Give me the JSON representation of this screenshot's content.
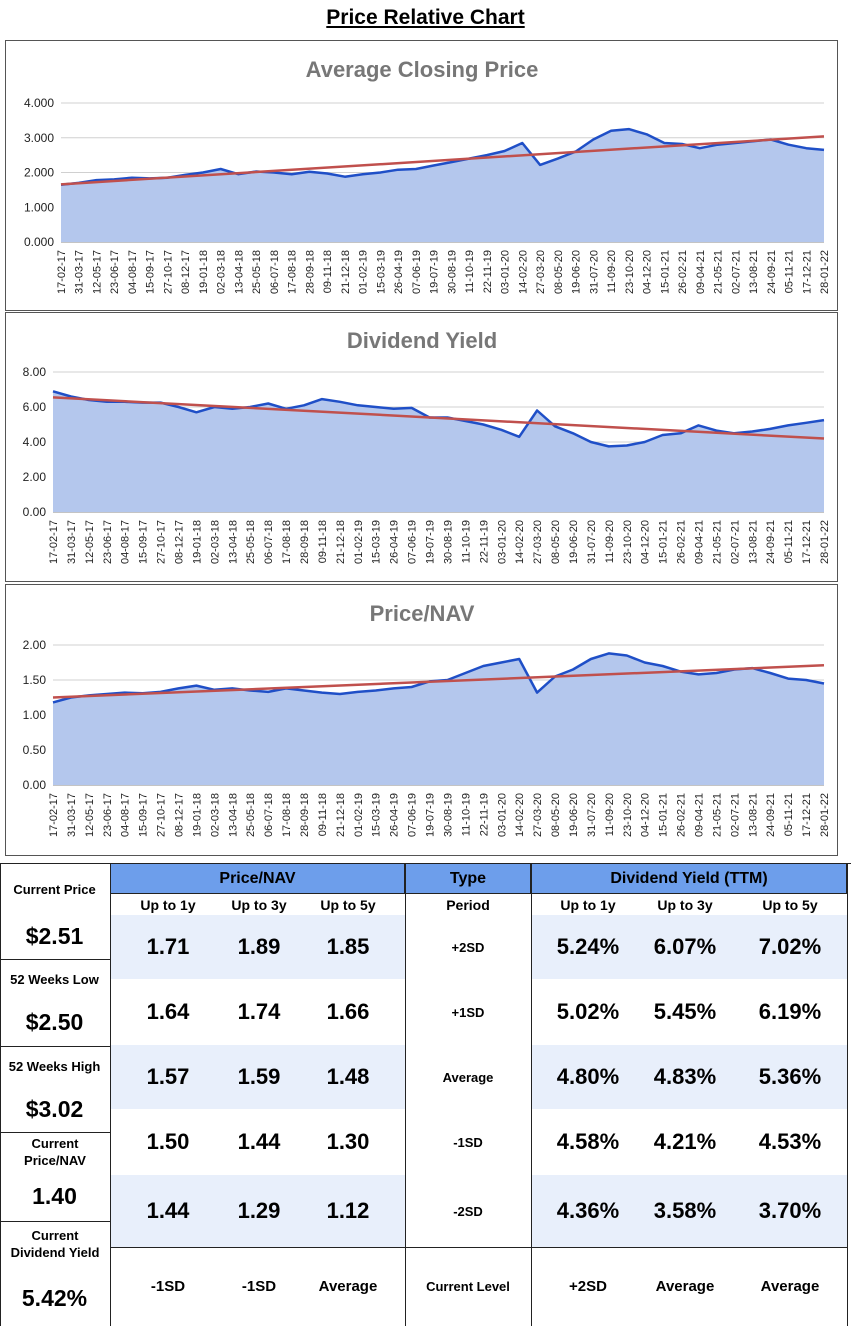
{
  "page_title": "Price Relative Chart",
  "colors": {
    "area": "#b4c7ed",
    "line": "#1f4fc7",
    "trend": "#c0504d",
    "header": "#6d9eeb",
    "band": "#e8effb"
  },
  "x_tick_labels": [
    "17-02-17",
    "31-03-17",
    "12-05-17",
    "23-06-17",
    "04-08-17",
    "15-09-17",
    "27-10-17",
    "08-12-17",
    "19-01-18",
    "02-03-18",
    "13-04-18",
    "25-05-18",
    "06-07-18",
    "17-08-18",
    "28-09-18",
    "09-11-18",
    "21-12-18",
    "01-02-19",
    "15-03-19",
    "26-04-19",
    "07-06-19",
    "19-07-19",
    "30-08-19",
    "11-10-19",
    "22-11-19",
    "03-01-20",
    "14-02-20",
    "27-03-20",
    "08-05-20",
    "19-06-20",
    "31-07-20",
    "11-09-20",
    "23-10-20",
    "04-12-20",
    "15-01-21",
    "26-02-21",
    "09-04-21",
    "21-05-21",
    "02-07-21",
    "13-08-21",
    "24-09-21",
    "05-11-21",
    "17-12-21",
    "28-01-22"
  ],
  "chart_data": [
    {
      "type": "area",
      "title": "Average Closing Price",
      "xlabel": "",
      "ylabel": "",
      "ylim": [
        0,
        4
      ],
      "y_ticks": [
        "0.000",
        "1.000",
        "2.000",
        "3.000",
        "4.000"
      ],
      "grid": true,
      "series": [
        {
          "values": [
            1.65,
            1.7,
            1.78,
            1.8,
            1.85,
            1.83,
            1.85,
            1.93,
            2.0,
            2.1,
            1.95,
            2.03,
            2.0,
            1.95,
            2.02,
            1.97,
            1.88,
            1.95,
            2.0,
            2.08,
            2.1,
            2.2,
            2.3,
            2.4,
            2.5,
            2.62,
            2.85,
            2.22,
            2.4,
            2.6,
            2.95,
            3.2,
            3.25,
            3.1,
            2.85,
            2.82,
            2.7,
            2.8,
            2.85,
            2.9,
            2.95,
            2.8,
            2.7,
            2.65
          ]
        },
        {
          "values": [
            1.66,
            3.04
          ]
        }
      ]
    },
    {
      "type": "area",
      "title": "Dividend Yield",
      "xlabel": "",
      "ylabel": "",
      "ylim": [
        0,
        8
      ],
      "y_ticks": [
        "0.00",
        "2.00",
        "4.00",
        "6.00",
        "8.00"
      ],
      "grid": true,
      "series": [
        {
          "values": [
            6.9,
            6.6,
            6.4,
            6.3,
            6.3,
            6.25,
            6.25,
            6.0,
            5.7,
            6.0,
            5.9,
            6.0,
            6.2,
            5.9,
            6.1,
            6.45,
            6.3,
            6.1,
            6.0,
            5.9,
            5.95,
            5.4,
            5.4,
            5.2,
            5.0,
            4.7,
            4.3,
            5.8,
            4.9,
            4.5,
            4.0,
            3.75,
            3.8,
            4.0,
            4.4,
            4.5,
            4.95,
            4.65,
            4.5,
            4.6,
            4.75,
            4.95,
            5.1,
            5.25
          ]
        },
        {
          "values": [
            6.55,
            4.2
          ]
        }
      ]
    },
    {
      "type": "area",
      "title": "Price/NAV",
      "xlabel": "",
      "ylabel": "",
      "ylim": [
        0,
        2
      ],
      "y_ticks": [
        "0.00",
        "0.50",
        "1.00",
        "1.50",
        "2.00"
      ],
      "grid": true,
      "series": [
        {
          "values": [
            1.18,
            1.25,
            1.28,
            1.3,
            1.32,
            1.31,
            1.33,
            1.38,
            1.42,
            1.36,
            1.38,
            1.35,
            1.33,
            1.38,
            1.35,
            1.32,
            1.3,
            1.33,
            1.35,
            1.38,
            1.4,
            1.48,
            1.5,
            1.6,
            1.7,
            1.75,
            1.8,
            1.32,
            1.55,
            1.65,
            1.8,
            1.88,
            1.85,
            1.75,
            1.7,
            1.62,
            1.58,
            1.6,
            1.65,
            1.67,
            1.6,
            1.52,
            1.5,
            1.45
          ]
        },
        {
          "values": [
            1.25,
            1.71
          ]
        }
      ]
    }
  ],
  "table": {
    "left": [
      {
        "label": "Current Price",
        "value": "$2.51"
      },
      {
        "label": "52 Weeks Low",
        "value": "$2.50"
      },
      {
        "label": "52 Weeks High",
        "value": "$3.02"
      },
      {
        "label": "Current Price/NAV",
        "value": "1.40"
      },
      {
        "label": "Current Dividend Yield",
        "value": "5.42%"
      }
    ],
    "price_nav_header": "Price/NAV",
    "type_header": "Type",
    "div_header": "Dividend Yield (TTM)",
    "price_nav_cols": [
      "Up to 1y",
      "Up to 3y",
      "Up to 5y"
    ],
    "type_col": "Period",
    "div_cols": [
      "Up to 1y",
      "Up to 3y",
      "Up to 5y"
    ],
    "rows": [
      {
        "type": "+2SD",
        "price_nav": [
          "1.71",
          "1.89",
          "1.85"
        ],
        "div": [
          "5.24%",
          "6.07%",
          "7.02%"
        ]
      },
      {
        "type": "+1SD",
        "price_nav": [
          "1.64",
          "1.74",
          "1.66"
        ],
        "div": [
          "5.02%",
          "5.45%",
          "6.19%"
        ]
      },
      {
        "type": "Average",
        "price_nav": [
          "1.57",
          "1.59",
          "1.48"
        ],
        "div": [
          "4.80%",
          "4.83%",
          "5.36%"
        ]
      },
      {
        "type": "-1SD",
        "price_nav": [
          "1.50",
          "1.44",
          "1.30"
        ],
        "div": [
          "4.58%",
          "4.21%",
          "4.53%"
        ]
      },
      {
        "type": "-2SD",
        "price_nav": [
          "1.44",
          "1.29",
          "1.12"
        ],
        "div": [
          "4.36%",
          "3.58%",
          "3.70%"
        ]
      }
    ],
    "current_level": {
      "type": "Current Level",
      "price_nav": [
        "-1SD",
        "-1SD",
        "Average"
      ],
      "div": [
        "+2SD",
        "Average",
        "Average"
      ]
    }
  }
}
